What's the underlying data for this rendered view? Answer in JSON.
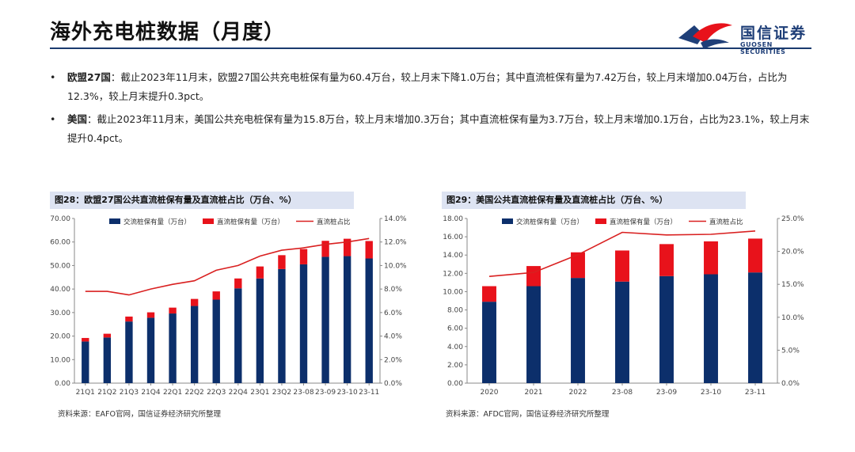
{
  "page": {
    "title": "海外充电桩数据（月度）",
    "logo_cn": "国信证券",
    "logo_en": "GUOSEN SECURITIES",
    "colors": {
      "dc": "#e8121b",
      "ac": "#0c2f6b",
      "ratio": "#d92020",
      "header_bg": "#dde3f2",
      "brand": "#1f3f78"
    }
  },
  "bullets": [
    {
      "label": "欧盟27国",
      "text": "：截止2023年11月末，欧盟27国公共充电桩保有量为60.4万台，较上月末下降1.0万台；其中直流桩保有量为7.42万台，较上月末增加0.04万台，占比为12.3%，较上月末提升0.3pct。"
    },
    {
      "label": "美国",
      "text": "：截止2023年11月末，美国公共充电桩保有量为15.8万台，较上月末增加0.3万台；其中直流桩保有量为3.7万台，较上月末增加0.1万台，占比为23.1%，较上月末提升0.4pct。"
    }
  ],
  "chart_data": [
    {
      "type": "bar",
      "stacked": true,
      "title": "图28：欧盟27国公共直流桩保有量及直流桩占比（万台、%）",
      "source": "资料来源：EAFO官网，国信证券经济研究所整理",
      "categories": [
        "21Q1",
        "21Q2",
        "21Q3",
        "21Q4",
        "22Q1",
        "22Q2",
        "22Q3",
        "22Q4",
        "23Q1",
        "23Q2",
        "23-08",
        "23-09",
        "23-10",
        "23-11"
      ],
      "series": [
        {
          "name": "交流桩保有量（万台）",
          "axis": "left",
          "color": "#0c2f6b",
          "values": [
            17.7,
            19.4,
            26.2,
            27.8,
            29.6,
            32.8,
            35.5,
            40.3,
            44.5,
            48.5,
            50.5,
            53.7,
            54.0,
            53.0
          ]
        },
        {
          "name": "直流桩保有量（万台）",
          "axis": "left",
          "color": "#e8121b",
          "values": [
            1.5,
            1.6,
            2.1,
            2.3,
            2.5,
            3.0,
            3.5,
            4.2,
            5.1,
            5.9,
            6.5,
            6.8,
            7.38,
            7.42
          ]
        },
        {
          "name": "直流桩占比",
          "type": "line",
          "axis": "right",
          "color": "#d92020",
          "values": [
            7.8,
            7.8,
            7.5,
            8.0,
            8.4,
            8.7,
            9.6,
            10.0,
            10.8,
            11.3,
            11.5,
            11.8,
            12.0,
            12.3
          ]
        }
      ],
      "ylim_left": [
        0,
        70
      ],
      "yticks_left": [
        "0.00",
        "10.00",
        "20.00",
        "30.00",
        "40.00",
        "50.00",
        "60.00",
        "70.00"
      ],
      "ylim_right": [
        0,
        14
      ],
      "yticks_right": [
        "0.0%",
        "2.0%",
        "4.0%",
        "6.0%",
        "8.0%",
        "10.0%",
        "12.0%",
        "14.0%"
      ],
      "legend": "top"
    },
    {
      "type": "bar",
      "stacked": true,
      "title": "图29：美国公共直流桩保有量及直流桩占比（万台、%）",
      "source": "资料来源：AFDC官网，国信证券经济研究所整理",
      "categories": [
        "2020",
        "2021",
        "2022",
        "23-08",
        "23-09",
        "23-10",
        "23-11"
      ],
      "series": [
        {
          "name": "交流桩保有量（万台）",
          "axis": "left",
          "color": "#0c2f6b",
          "values": [
            8.9,
            10.6,
            11.5,
            11.1,
            11.7,
            11.9,
            12.1
          ]
        },
        {
          "name": "直流桩保有量（万台）",
          "axis": "left",
          "color": "#e8121b",
          "values": [
            1.7,
            2.2,
            2.8,
            3.4,
            3.5,
            3.6,
            3.7
          ]
        },
        {
          "name": "直流桩占比",
          "type": "line",
          "axis": "right",
          "color": "#d92020",
          "values": [
            16.2,
            16.8,
            19.5,
            22.9,
            22.5,
            22.6,
            23.1
          ]
        }
      ],
      "ylim_left": [
        0,
        18
      ],
      "yticks_left": [
        "0.00",
        "2.00",
        "4.00",
        "6.00",
        "8.00",
        "10.00",
        "12.00",
        "14.00",
        "16.00",
        "18.00"
      ],
      "ylim_right": [
        0,
        25
      ],
      "yticks_right": [
        "0.0%",
        "5.0%",
        "10.0%",
        "15.0%",
        "20.0%",
        "25.0%"
      ],
      "legend": "top"
    }
  ]
}
